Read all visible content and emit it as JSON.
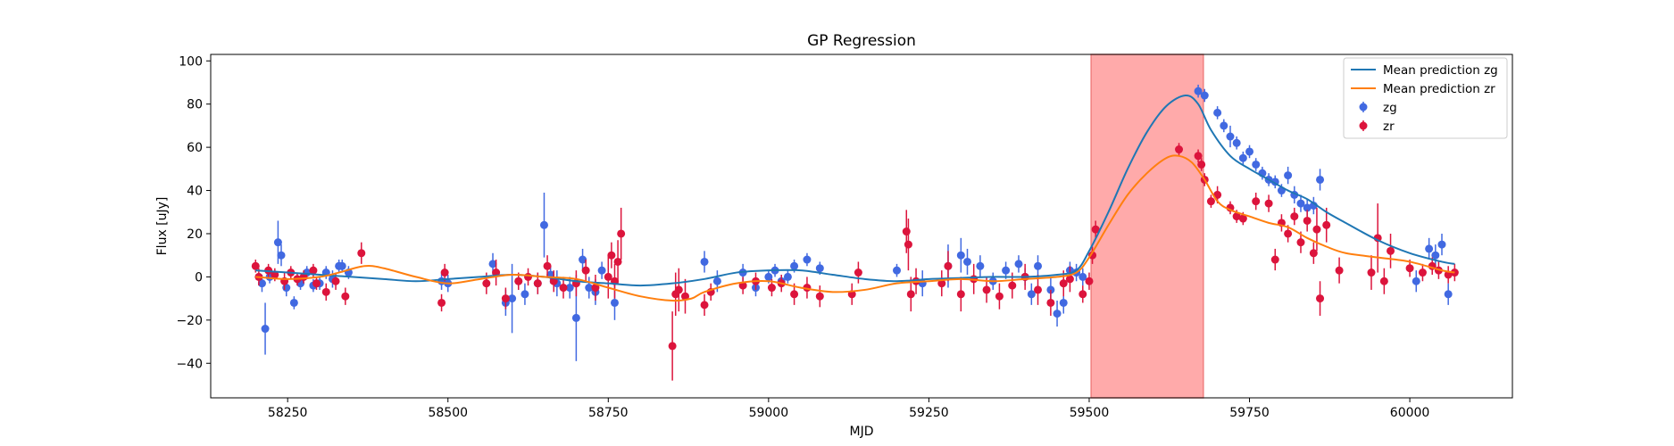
{
  "chart_data": {
    "type": "scatter",
    "title": "GP Regression",
    "xlabel": "MJD",
    "ylabel": "Flux [uJy]",
    "xlim": [
      58130,
      60160
    ],
    "ylim": [
      -56,
      103
    ],
    "xticks": [
      58250,
      58500,
      58750,
      59000,
      59250,
      59500,
      59750,
      60000
    ],
    "yticks": [
      -40,
      -20,
      0,
      20,
      40,
      60,
      80,
      100
    ],
    "grid": false,
    "legend_position": "top-right",
    "highlight_region": {
      "x0": 59503,
      "x1": 59678,
      "color": "#ffaaaa"
    },
    "colors": {
      "zg_line": "#1f77b4",
      "zr_line": "#ff7f0e",
      "zg_points": "#4169e1",
      "zr_points": "#dc143c"
    },
    "lines": [
      {
        "name": "Mean prediction zg",
        "color": "#1f77b4",
        "x": [
          58200,
          58250,
          58300,
          58350,
          58400,
          58450,
          58500,
          58550,
          58600,
          58650,
          58700,
          58750,
          58800,
          58850,
          58900,
          58950,
          59000,
          59050,
          59100,
          59150,
          59200,
          59250,
          59300,
          59350,
          59400,
          59450,
          59480,
          59500,
          59530,
          59560,
          59590,
          59620,
          59650,
          59670,
          59690,
          59720,
          59750,
          59780,
          59810,
          59840,
          59870,
          59900,
          59950,
          60000,
          60050,
          60070
        ],
        "y": [
          3,
          2,
          1,
          0,
          -1,
          -2,
          -1,
          0,
          1,
          0,
          -2,
          -3,
          -4,
          -3,
          -1,
          2,
          3,
          3,
          1,
          -1,
          -2,
          -1,
          -0.5,
          0,
          0,
          1,
          3,
          12,
          30,
          50,
          67,
          79,
          84,
          80,
          68,
          56,
          50,
          45,
          40,
          36,
          30,
          25,
          17,
          11,
          7,
          6
        ]
      },
      {
        "name": "Mean prediction zr",
        "color": "#ff7f0e",
        "x": [
          58200,
          58250,
          58300,
          58330,
          58370,
          58400,
          58450,
          58500,
          58550,
          58600,
          58650,
          58700,
          58750,
          58800,
          58850,
          58880,
          58900,
          58950,
          59000,
          59050,
          59100,
          59150,
          59200,
          59250,
          59300,
          59350,
          59400,
          59450,
          59480,
          59500,
          59530,
          59560,
          59590,
          59620,
          59640,
          59660,
          59680,
          59700,
          59720,
          59750,
          59780,
          59810,
          59840,
          59870,
          59900,
          59950,
          60000,
          60050,
          60070
        ],
        "y": [
          0,
          -1,
          0,
          2,
          5,
          4,
          0,
          -3,
          -1,
          1,
          0,
          -1,
          -5,
          -9,
          -11,
          -10,
          -7,
          -3,
          -2,
          -5,
          -7,
          -6,
          -3,
          -2,
          -1,
          -2,
          -1,
          0,
          2,
          9,
          24,
          38,
          48,
          55,
          56,
          53,
          45,
          35,
          31,
          28,
          25,
          23,
          18,
          14,
          11,
          9,
          7,
          3,
          2
        ]
      }
    ],
    "series": [
      {
        "name": "zg",
        "color": "#4169e1",
        "x": [
          58210,
          58215,
          58222,
          58235,
          58240,
          58248,
          58260,
          58270,
          58280,
          58290,
          58300,
          58310,
          58320,
          58330,
          58335,
          58345,
          58490,
          58500,
          58570,
          58590,
          58600,
          58610,
          58620,
          58640,
          58650,
          58660,
          58670,
          58690,
          58700,
          58710,
          58720,
          58730,
          58740,
          58760,
          58900,
          58920,
          58960,
          58980,
          59000,
          59010,
          59020,
          59030,
          59040,
          59060,
          59080,
          59200,
          59240,
          59280,
          59300,
          59310,
          59330,
          59350,
          59370,
          59390,
          59400,
          59410,
          59420,
          59440,
          59450,
          59460,
          59470,
          59480,
          59490,
          59670,
          59680,
          59700,
          59710,
          59720,
          59730,
          59740,
          59750,
          59760,
          59770,
          59780,
          59790,
          59800,
          59810,
          59820,
          59830,
          59840,
          59850,
          59860,
          60010,
          60030,
          60040,
          60050,
          60060
        ],
        "y": [
          -3,
          -24,
          0,
          16,
          10,
          -5,
          -12,
          -3,
          2,
          -4,
          -3,
          2,
          -1,
          5,
          5,
          2,
          -2,
          -3,
          6,
          -12,
          -10,
          -2,
          -8,
          -3,
          24,
          1,
          -3,
          -5,
          -19,
          8,
          -5,
          -7,
          3,
          -12,
          7,
          -2,
          2,
          -5,
          0,
          3,
          -2,
          0,
          5,
          8,
          4,
          3,
          -3,
          5,
          10,
          7,
          5,
          -2,
          3,
          6,
          0,
          -8,
          5,
          -6,
          -17,
          -12,
          3,
          2,
          0,
          86,
          84,
          76,
          70,
          65,
          62,
          55,
          58,
          52,
          48,
          45,
          44,
          40,
          47,
          38,
          34,
          32,
          33,
          45,
          -2,
          13,
          10,
          15,
          -8
        ],
        "yerr": [
          4,
          12,
          3,
          10,
          5,
          4,
          3,
          3,
          3,
          3,
          3,
          3,
          4,
          3,
          3,
          3,
          4,
          4,
          5,
          6,
          16,
          4,
          5,
          5,
          15,
          4,
          6,
          5,
          20,
          5,
          5,
          6,
          4,
          8,
          5,
          5,
          4,
          4,
          3,
          3,
          3,
          3,
          3,
          3,
          3,
          3,
          6,
          10,
          8,
          6,
          5,
          4,
          4,
          4,
          4,
          5,
          5,
          6,
          6,
          5,
          4,
          4,
          4,
          3,
          3,
          3,
          3,
          5,
          3,
          3,
          3,
          3,
          3,
          3,
          3,
          3,
          4,
          4,
          4,
          4,
          4,
          5,
          5,
          5,
          5,
          5,
          5
        ]
      },
      {
        "name": "zr",
        "color": "#dc143c",
        "x": [
          58200,
          58205,
          58220,
          58230,
          58245,
          58255,
          58265,
          58275,
          58290,
          58295,
          58310,
          58325,
          58340,
          58365,
          58490,
          58495,
          58560,
          58575,
          58590,
          58610,
          58625,
          58640,
          58655,
          58665,
          58680,
          58700,
          58715,
          58730,
          58750,
          58755,
          58760,
          58765,
          58770,
          58850,
          58855,
          58860,
          58870,
          58900,
          58910,
          58960,
          58980,
          59005,
          59020,
          59040,
          59060,
          59080,
          59130,
          59140,
          59215,
          59218,
          59222,
          59230,
          59270,
          59280,
          59300,
          59320,
          59340,
          59360,
          59380,
          59400,
          59420,
          59440,
          59460,
          59470,
          59490,
          59500,
          59505,
          59510,
          59640,
          59670,
          59675,
          59680,
          59690,
          59700,
          59720,
          59730,
          59740,
          59760,
          59780,
          59790,
          59800,
          59810,
          59820,
          59830,
          59840,
          59850,
          59855,
          59860,
          59870,
          59890,
          59940,
          59950,
          59960,
          59970,
          60000,
          60020,
          60035,
          60045,
          60060,
          60070
        ],
        "y": [
          5,
          0,
          3,
          1,
          -2,
          2,
          -1,
          0,
          3,
          -3,
          -7,
          -2,
          -9,
          11,
          -12,
          2,
          -3,
          2,
          -10,
          -2,
          0,
          -3,
          5,
          -2,
          -5,
          -3,
          3,
          -5,
          0,
          10,
          -2,
          7,
          20,
          -32,
          -8,
          -6,
          -9,
          -13,
          -7,
          -4,
          -2,
          -5,
          -3,
          -8,
          -5,
          -9,
          -8,
          2,
          21,
          15,
          -8,
          -2,
          -3,
          5,
          -8,
          -1,
          -6,
          -9,
          -4,
          0,
          -6,
          -12,
          -3,
          -1,
          -8,
          -2,
          10,
          22,
          59,
          56,
          52,
          45,
          35,
          38,
          32,
          28,
          27,
          35,
          34,
          8,
          25,
          20,
          28,
          16,
          26,
          11,
          22,
          -10,
          24,
          3,
          2,
          18,
          -2,
          12,
          4,
          2,
          5,
          3,
          1,
          2
        ],
        "yerr": [
          3,
          4,
          3,
          3,
          4,
          3,
          3,
          3,
          3,
          3,
          4,
          4,
          4,
          5,
          4,
          4,
          5,
          6,
          5,
          4,
          4,
          5,
          5,
          5,
          5,
          6,
          5,
          6,
          10,
          6,
          8,
          10,
          12,
          16,
          10,
          10,
          8,
          5,
          4,
          4,
          4,
          4,
          4,
          5,
          5,
          5,
          5,
          5,
          10,
          12,
          8,
          6,
          6,
          7,
          8,
          7,
          6,
          6,
          6,
          6,
          7,
          6,
          6,
          6,
          4,
          4,
          4,
          4,
          3,
          3,
          3,
          3,
          3,
          4,
          3,
          3,
          3,
          4,
          4,
          5,
          4,
          4,
          4,
          5,
          5,
          5,
          10,
          8,
          8,
          6,
          8,
          16,
          6,
          8,
          4,
          4,
          4,
          4,
          4,
          4
        ]
      }
    ]
  }
}
